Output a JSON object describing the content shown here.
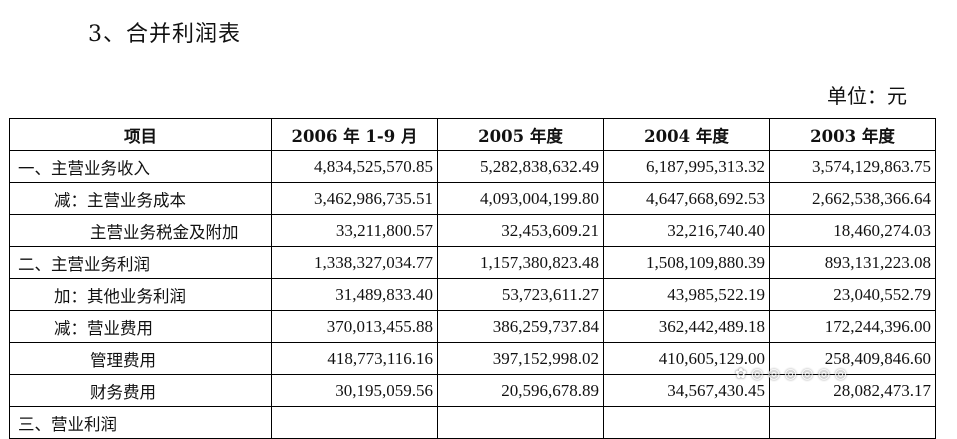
{
  "title": "3、合并利润表",
  "unit": "单位：元",
  "table": {
    "headers": [
      "项目",
      "2006 年 1-9 月",
      "2005 年度",
      "2004 年度",
      "2003 年度"
    ],
    "rows": [
      {
        "label": "一、主营业务收入",
        "level": 0,
        "values": [
          "4,834,525,570.85",
          "5,282,838,632.49",
          "6,187,995,313.32",
          "3,574,129,863.75"
        ]
      },
      {
        "label": "减：主营业务成本",
        "level": 1,
        "values": [
          "3,462,986,735.51",
          "4,093,004,199.80",
          "4,647,668,692.53",
          "2,662,538,366.64"
        ]
      },
      {
        "label": "主营业务税金及附加",
        "level": 2,
        "values": [
          "33,211,800.57",
          "32,453,609.21",
          "32,216,740.40",
          "18,460,274.03"
        ]
      },
      {
        "label": "二、主营业务利润",
        "level": 0,
        "values": [
          "1,338,327,034.77",
          "1,157,380,823.48",
          "1,508,109,880.39",
          "893,131,223.08"
        ]
      },
      {
        "label": "加：其他业务利润",
        "level": 1,
        "values": [
          "31,489,833.40",
          "53,723,611.27",
          "43,985,522.19",
          "23,040,552.79"
        ]
      },
      {
        "label": "减：营业费用",
        "level": 1,
        "values": [
          "370,013,455.88",
          "386,259,737.84",
          "362,442,489.18",
          "172,244,396.00"
        ]
      },
      {
        "label": "管理费用",
        "level": 2,
        "values": [
          "418,773,116.16",
          "397,152,998.02",
          "410,605,129.00",
          "258,409,846.60"
        ]
      },
      {
        "label": "财务费用",
        "level": 2,
        "values": [
          "30,195,059.56",
          "20,596,678.89",
          "34,567,430.45",
          "28,082,473.17"
        ]
      },
      {
        "label": "三、营业利润",
        "level": 0,
        "values": [
          "",
          "",
          "",
          ""
        ]
      }
    ]
  }
}
